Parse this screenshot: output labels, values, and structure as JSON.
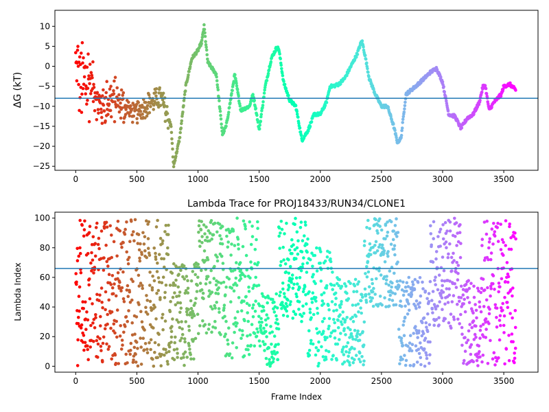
{
  "chart_data": [
    {
      "type": "scatter",
      "title": "",
      "xlabel": "",
      "ylabel": "ΔG (kT)",
      "xlim": [
        -170,
        3780
      ],
      "ylim": [
        -26,
        14
      ],
      "xticks": [
        0,
        500,
        1000,
        1500,
        2000,
        2500,
        3000,
        3500
      ],
      "yticks": [
        10,
        5,
        0,
        -5,
        -10,
        -15,
        -20,
        -25
      ],
      "hline": -8,
      "hline_color": "#1f77b4",
      "colormap": "rainbow (reversed: red at frame 0, violet at frame 3600)",
      "n_frames": 3600,
      "trace_keypoints": {
        "x": [
          0,
          60,
          120,
          200,
          300,
          400,
          500,
          600,
          700,
          780,
          800,
          850,
          900,
          950,
          1000,
          1030,
          1050,
          1080,
          1150,
          1200,
          1230,
          1280,
          1300,
          1350,
          1420,
          1450,
          1480,
          1500,
          1550,
          1600,
          1640,
          1660,
          1700,
          1750,
          1800,
          1850,
          1900,
          1950,
          2000,
          2050,
          2080,
          2100,
          2150,
          2200,
          2250,
          2300,
          2340,
          2370,
          2400,
          2450,
          2500,
          2550,
          2600,
          2630,
          2660,
          2700,
          2780,
          2850,
          2900,
          2950,
          3000,
          3050,
          3100,
          3150,
          3200,
          3250,
          3300,
          3330,
          3350,
          3380,
          3420,
          3480,
          3500,
          3550,
          3600
        ],
        "y": [
          0,
          -5,
          -3,
          -10,
          -8,
          -10,
          -12,
          -9,
          -8,
          -15,
          -25,
          -18,
          -5,
          2,
          4,
          6,
          10,
          1,
          -2,
          -17,
          -15,
          -6,
          -2,
          -11,
          -10,
          -7,
          -12,
          -16,
          -5,
          2,
          4.5,
          4.5,
          -4,
          -8.5,
          -10,
          -18.5,
          -16,
          -12,
          -12,
          -9,
          -5,
          -5,
          -4.5,
          -3,
          0,
          3,
          6.5,
          2,
          -3,
          -7,
          -10,
          -10,
          -15,
          -19,
          -18,
          -7,
          -5,
          -3,
          -1.5,
          -0.5,
          -4,
          -12,
          -12.5,
          -15.5,
          -13,
          -12,
          -9,
          -5,
          -5,
          -11,
          -9,
          -7,
          -5,
          -4.5,
          -6
        ]
      }
    },
    {
      "type": "scatter",
      "title": "Lambda Trace for PROJ18433/RUN34/CLONE1",
      "xlabel": "Frame Index",
      "ylabel": "Lambda Index",
      "xlim": [
        -170,
        3780
      ],
      "ylim": [
        -4,
        104
      ],
      "xticks": [
        0,
        500,
        1000,
        1500,
        2000,
        2500,
        3000,
        3500
      ],
      "yticks": [
        0,
        20,
        40,
        60,
        80,
        100
      ],
      "hline": 66,
      "hline_color": "#1f77b4",
      "colormap": "rainbow (reversed: red at frame 0, violet at frame 3600)",
      "n_frames": 3600,
      "range_segments": [
        {
          "x0": 0,
          "x1": 760,
          "lo": 0,
          "hi": 100
        },
        {
          "x0": 760,
          "x1": 1000,
          "lo": 0,
          "hi": 70
        },
        {
          "x0": 1000,
          "x1": 1200,
          "lo": 20,
          "hi": 100
        },
        {
          "x0": 1200,
          "x1": 1300,
          "lo": 5,
          "hi": 95
        },
        {
          "x0": 1300,
          "x1": 1500,
          "lo": 5,
          "hi": 100
        },
        {
          "x0": 1500,
          "x1": 1660,
          "lo": 0,
          "hi": 50
        },
        {
          "x0": 1660,
          "x1": 1900,
          "lo": 30,
          "hi": 100
        },
        {
          "x0": 1900,
          "x1": 2100,
          "lo": 0,
          "hi": 80
        },
        {
          "x0": 2100,
          "x1": 2360,
          "lo": 0,
          "hi": 60
        },
        {
          "x0": 2360,
          "x1": 2640,
          "lo": 40,
          "hi": 100
        },
        {
          "x0": 2640,
          "x1": 2900,
          "lo": 0,
          "hi": 60
        },
        {
          "x0": 2900,
          "x1": 3150,
          "lo": 25,
          "hi": 100
        },
        {
          "x0": 3150,
          "x1": 3320,
          "lo": 0,
          "hi": 60
        },
        {
          "x0": 3320,
          "x1": 3600,
          "lo": 0,
          "hi": 100
        }
      ]
    }
  ]
}
